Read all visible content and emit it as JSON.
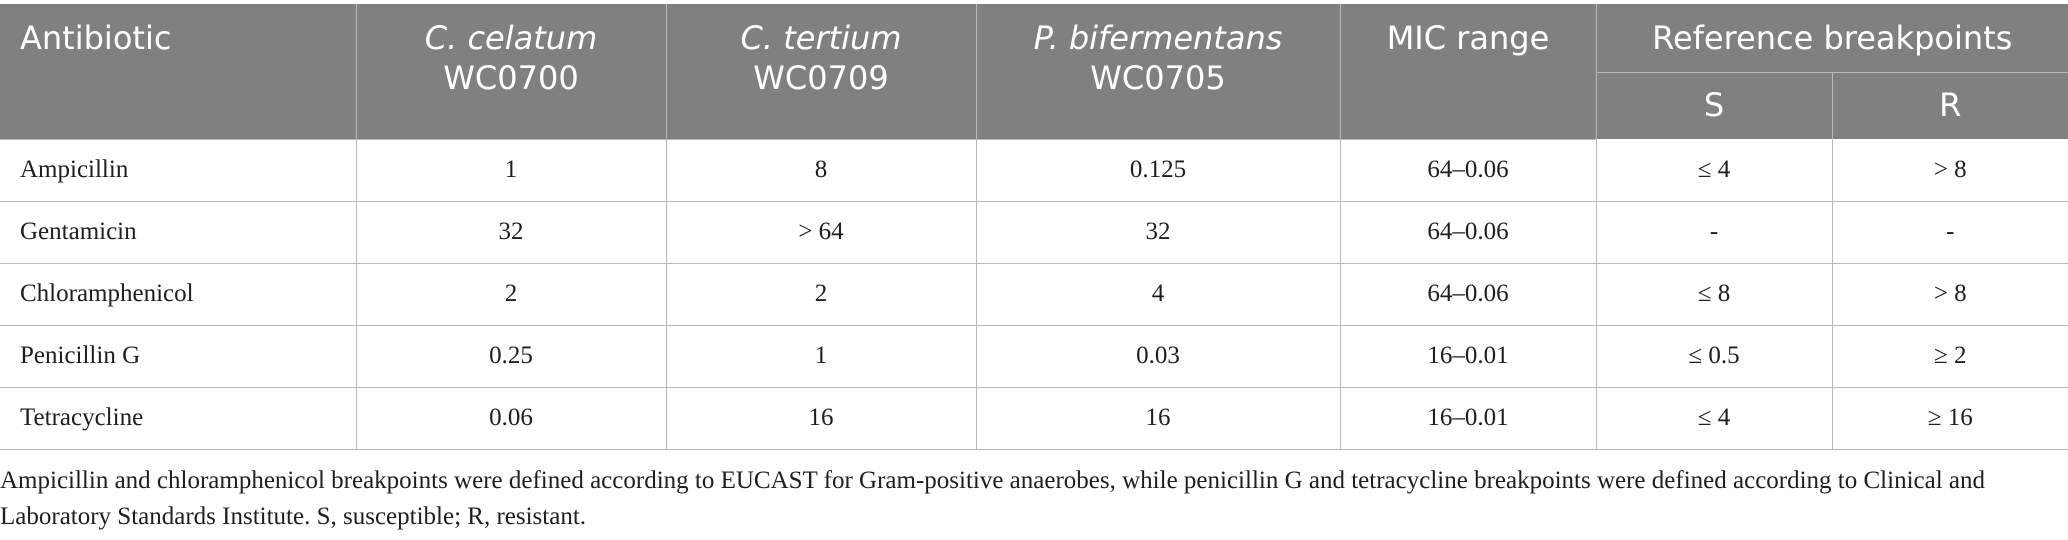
{
  "header": {
    "antibiotic": "Antibiotic",
    "strains": [
      {
        "species": "C. celatum",
        "id": "WC0700"
      },
      {
        "species": "C. tertium",
        "id": "WC0709"
      },
      {
        "species": "P. bifermentans",
        "id": "WC0705"
      }
    ],
    "mic_range": "MIC range",
    "reference_breakpoints": "Reference breakpoints",
    "s_label": "S",
    "r_label": "R"
  },
  "rows": [
    {
      "antibiotic": "Ampicillin",
      "v1": "1",
      "v2": "8",
      "v3": "0.125",
      "mic": "64–0.06",
      "s": "≤ 4",
      "r": "> 8"
    },
    {
      "antibiotic": "Gentamicin",
      "v1": "32",
      "v2": "> 64",
      "v3": "32",
      "mic": "64–0.06",
      "s": "-",
      "r": "-"
    },
    {
      "antibiotic": "Chloramphenicol",
      "v1": "2",
      "v2": "2",
      "v3": "4",
      "mic": "64–0.06",
      "s": "≤ 8",
      "r": "> 8"
    },
    {
      "antibiotic": "Penicillin G",
      "v1": "0.25",
      "v2": "1",
      "v3": "0.03",
      "mic": "16–0.01",
      "s": "≤ 0.5",
      "r": "≥ 2"
    },
    {
      "antibiotic": "Tetracycline",
      "v1": "0.06",
      "v2": "16",
      "v3": "16",
      "mic": "16–0.01",
      "s": "≤ 4",
      "r": "≥ 16"
    }
  ],
  "footnote": "Ampicillin and chloramphenicol breakpoints were defined according to EUCAST for Gram-positive anaerobes, while penicillin G and tetracycline breakpoints were defined according to Clinical and Laboratory Standards Institute. S, susceptible; R, resistant."
}
